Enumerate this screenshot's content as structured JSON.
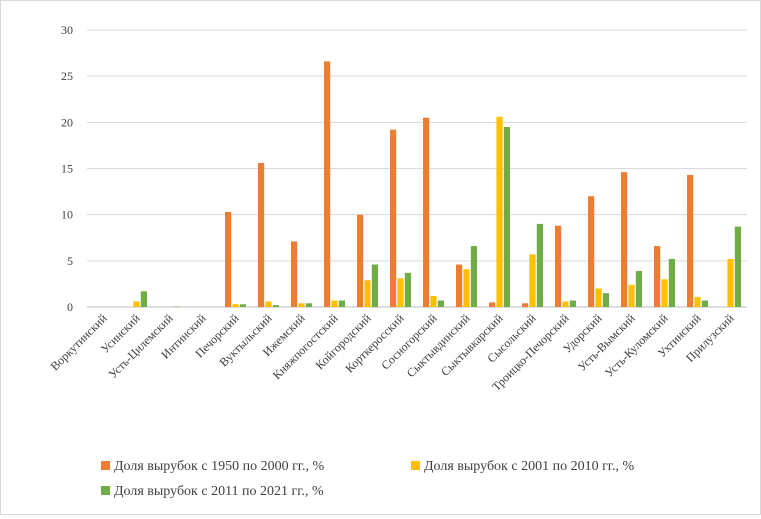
{
  "chart_data": {
    "type": "bar",
    "categories": [
      "Воркутинский",
      "Усинский",
      "Усть-Цилемский",
      "Интинский",
      "Печорский",
      "Вуктыльский",
      "Ижемский",
      "Княжпогостский",
      "Койгородский",
      "Корткеросский",
      "Сосногорский",
      "Сыктывдинский",
      "Сыктывкарский",
      "Сысольский",
      "Троицко-Печорский",
      "Удорский",
      "Усть-Вымский",
      "Усть-Куломский",
      "Ухтинский",
      "Прилузский"
    ],
    "series": [
      {
        "name": "Доля вырубок с 1950 по 2000 гг., %",
        "color": "#ED7D31",
        "values": [
          0,
          0,
          0,
          0,
          10.3,
          15.6,
          7.1,
          26.6,
          10.0,
          19.2,
          20.5,
          4.6,
          0.5,
          0.4,
          8.8,
          12.0,
          14.6,
          6.6,
          14.3,
          0
        ]
      },
      {
        "name": "Доля вырубок с 2001 по 2010 гг., %",
        "color": "#FFC000",
        "values": [
          0,
          0.6,
          0,
          0,
          0.3,
          0.6,
          0.4,
          0.7,
          2.9,
          3.1,
          1.2,
          4.1,
          20.6,
          5.7,
          0.6,
          2.0,
          2.4,
          3.0,
          1.1,
          5.2
        ]
      },
      {
        "name": "Доля вырубок с 2011 по 2021 гг., %",
        "color": "#70AD47",
        "values": [
          0,
          1.7,
          0.05,
          0,
          0.3,
          0.2,
          0.4,
          0.7,
          4.6,
          3.7,
          0.7,
          6.6,
          19.5,
          9.0,
          0.7,
          1.5,
          3.9,
          5.2,
          0.7,
          8.7
        ]
      }
    ],
    "y_ticks": [
      "0",
      "5",
      "10",
      "15",
      "20",
      "25",
      "30"
    ],
    "ylim": [
      0,
      30
    ],
    "grid": true,
    "legend_position": "bottom"
  }
}
